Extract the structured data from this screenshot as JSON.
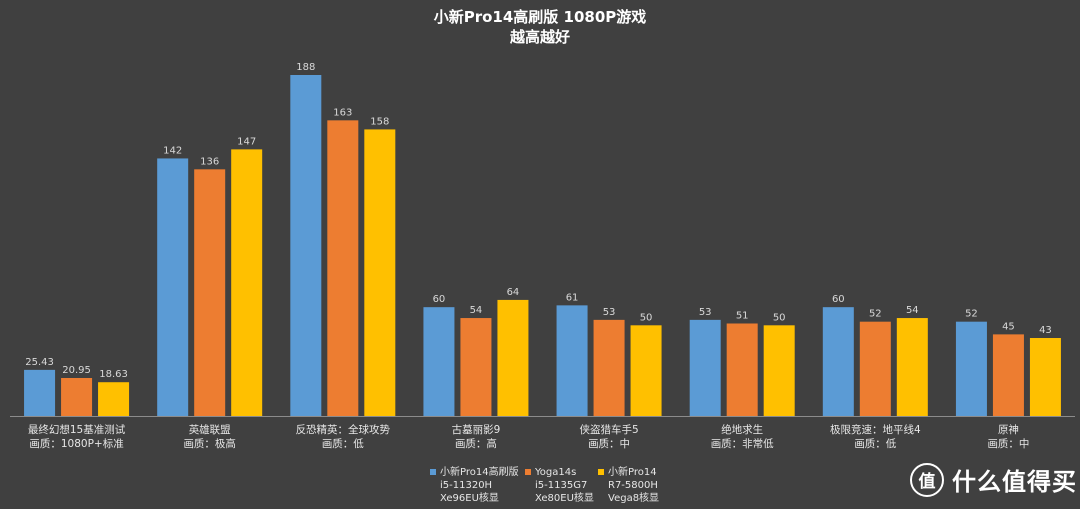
{
  "chart_data": {
    "type": "bar",
    "title": "小新Pro14高刷版  1080P游戏",
    "subtitle": "越高越好",
    "categories": [
      [
        "最终幻想15基准测试",
        "画质：1080P+标准"
      ],
      [
        "英雄联盟",
        "画质：极高"
      ],
      [
        "反恐精英：全球攻势",
        "画质：低"
      ],
      [
        "古墓丽影9",
        "画质：高"
      ],
      [
        "侠盗猎车手5",
        "画质：中"
      ],
      [
        "绝地求生",
        "画质：非常低"
      ],
      [
        "极限竞速：地平线4",
        "画质：低"
      ],
      [
        "原神",
        "画质：中"
      ]
    ],
    "series": [
      {
        "name": "小新Pro14高刷版",
        "detail": [
          "i5-11320H",
          "Xe96EU核显"
        ],
        "color": "#5b9bd5",
        "values": [
          25.43,
          142,
          188,
          60,
          61,
          53,
          60,
          52
        ],
        "labels": [
          "25.43",
          "142",
          "188",
          "60",
          "61",
          "53",
          "60",
          "52"
        ]
      },
      {
        "name": "Yoga14s",
        "detail": [
          "i5-1135G7",
          "Xe80EU核显"
        ],
        "color": "#ed7d31",
        "values": [
          20.95,
          136,
          163,
          54,
          53,
          51,
          52,
          45
        ],
        "labels": [
          "20.95",
          "136",
          "163",
          "54",
          "53",
          "51",
          "52",
          "45"
        ]
      },
      {
        "name": "小新Pro14",
        "detail": [
          "R7-5800H",
          "Vega8核显"
        ],
        "color": "#ffc000",
        "values": [
          18.63,
          147,
          158,
          64,
          50,
          50,
          54,
          43
        ],
        "labels": [
          "18.63",
          "147",
          "158",
          "64",
          "50",
          "50",
          "54",
          "43"
        ]
      }
    ],
    "ylim": [
      0,
      188
    ],
    "grid": false,
    "legend_position": "bottom"
  },
  "watermark": {
    "badge": "值",
    "text": "什么值得买"
  }
}
